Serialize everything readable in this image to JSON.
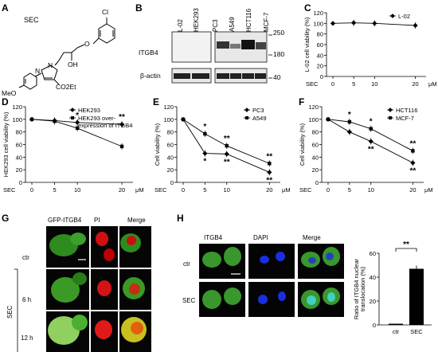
{
  "panels": {
    "A": {
      "label": "A",
      "compound": "SEC",
      "atoms": {
        "cl": "Cl",
        "oh": "OH",
        "n1": "N",
        "n2": "N",
        "co2et": "CO2Et",
        "meo": "MeO"
      }
    },
    "B": {
      "label": "B",
      "lanes": [
        "L-02",
        "HEK293",
        "PC3",
        "A549",
        "HCT116",
        "MCF-7"
      ],
      "rows": [
        "ITGB4",
        "β-actin"
      ],
      "mw": [
        "250",
        "180",
        "40"
      ]
    },
    "C": {
      "label": "C",
      "sec_label": "SEC",
      "unit": "μM"
    },
    "D": {
      "label": "D",
      "sec_label": "SEC",
      "unit": "μM"
    },
    "E": {
      "label": "E",
      "sec_label": "SEC",
      "unit": "μM"
    },
    "F": {
      "label": "F",
      "sec_label": "SEC",
      "unit": "μM"
    },
    "G": {
      "label": "G",
      "cols": [
        "GFP-ITGB4",
        "PI",
        "Merge"
      ],
      "rows": [
        "ctr",
        "6 h",
        "12 h"
      ],
      "side": "SEC"
    },
    "H": {
      "label": "H",
      "cols": [
        "ITGB4",
        "DAPI",
        "Merge"
      ],
      "rows": [
        "ctr",
        "SEC"
      ]
    }
  },
  "chart_data": [
    {
      "id": "C",
      "type": "line",
      "x": [
        0,
        5,
        10,
        20
      ],
      "categories": [
        "0",
        "5",
        "10",
        "20"
      ],
      "ylabel": "L-02 cell viability (%)",
      "xlabel": "SEC μM",
      "ylim": [
        0,
        120
      ],
      "yticks": [
        0,
        20,
        40,
        60,
        80,
        100,
        120
      ],
      "legend": "top-right",
      "series": [
        {
          "name": "L-02",
          "values": [
            100,
            101,
            100,
            96
          ],
          "marker": "diamond"
        }
      ]
    },
    {
      "id": "D",
      "type": "line",
      "x": [
        0,
        5,
        10,
        20
      ],
      "categories": [
        "0",
        "5",
        "10",
        "20"
      ],
      "ylabel": "HEK293 cell viability (%)",
      "xlabel": "SEC μM",
      "ylim": [
        0,
        120
      ],
      "yticks": [
        0,
        20,
        40,
        60,
        80,
        100,
        120
      ],
      "legend": "top-right",
      "series": [
        {
          "name": "HEK293",
          "values": [
            100,
            98,
            95,
            92
          ],
          "marker": "diamond"
        },
        {
          "name": "HEK293 over-expression of ITGB4",
          "values": [
            100,
            97,
            86,
            57
          ],
          "marker": "square"
        }
      ],
      "annotations": [
        {
          "x": 10,
          "text": "*"
        },
        {
          "x": 20,
          "text": "**"
        }
      ]
    },
    {
      "id": "E",
      "type": "line",
      "x": [
        0,
        5,
        10,
        20
      ],
      "categories": [
        "0",
        "5",
        "10",
        "20"
      ],
      "ylabel": "Cell viability (%)",
      "xlabel": "SEC μM",
      "ylim": [
        0,
        120
      ],
      "yticks": [
        0,
        20,
        40,
        60,
        80,
        100,
        120
      ],
      "legend": "top-right",
      "series": [
        {
          "name": "PC3",
          "values": [
            100,
            46,
            45,
            16
          ],
          "marker": "diamond"
        },
        {
          "name": "A549",
          "values": [
            100,
            77,
            58,
            30
          ],
          "marker": "square"
        }
      ],
      "annotations": [
        {
          "x": 5,
          "text": "*"
        },
        {
          "x": 5,
          "text": "*"
        },
        {
          "x": 10,
          "text": "**"
        },
        {
          "x": 10,
          "text": "**"
        },
        {
          "x": 20,
          "text": "**"
        },
        {
          "x": 20,
          "text": "**"
        }
      ]
    },
    {
      "id": "F",
      "type": "line",
      "x": [
        0,
        5,
        10,
        20
      ],
      "categories": [
        "0",
        "5",
        "10",
        "20"
      ],
      "ylabel": "Cell viability (%)",
      "xlabel": "SEC μM",
      "ylim": [
        0,
        120
      ],
      "yticks": [
        0,
        20,
        40,
        60,
        80,
        100,
        120
      ],
      "legend": "top-right",
      "series": [
        {
          "name": "HCT116",
          "values": [
            100,
            80,
            65,
            31
          ],
          "marker": "diamond"
        },
        {
          "name": "MCF-7",
          "values": [
            100,
            96,
            85,
            50
          ],
          "marker": "square"
        }
      ],
      "annotations": [
        {
          "x": 5,
          "text": "*"
        },
        {
          "x": 10,
          "text": "*"
        },
        {
          "x": 10,
          "text": "**"
        },
        {
          "x": 20,
          "text": "**"
        },
        {
          "x": 20,
          "text": "**"
        }
      ]
    },
    {
      "id": "H",
      "type": "bar",
      "categories": [
        "ctr",
        "SEC"
      ],
      "values": [
        1,
        47
      ],
      "ylabel": "Ratio of ITGB4 nuclear translocation (%)",
      "ylim": [
        0,
        60
      ],
      "yticks": [
        0,
        20,
        40,
        60
      ],
      "annotations": [
        {
          "text": "**"
        }
      ]
    }
  ]
}
